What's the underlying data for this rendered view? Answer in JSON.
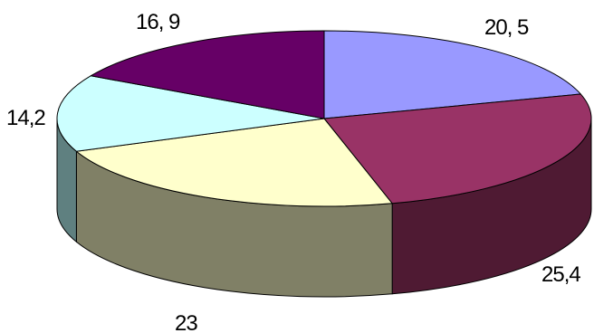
{
  "chart_data": {
    "type": "pie",
    "style": "3d",
    "values": [
      20.5,
      25.4,
      23,
      14.2,
      16.9
    ],
    "labels": [
      "20, 5",
      "25,4",
      "23",
      "14,2",
      "16, 9"
    ],
    "colors": [
      "#9999ff",
      "#993366",
      "#ffffcc",
      "#ccffff",
      "#660066"
    ],
    "side_colors": [
      "#5a5a96",
      "#4f1a33",
      "#808066",
      "#5f8080",
      "#3a003a"
    ],
    "title": "",
    "legend": "none"
  }
}
